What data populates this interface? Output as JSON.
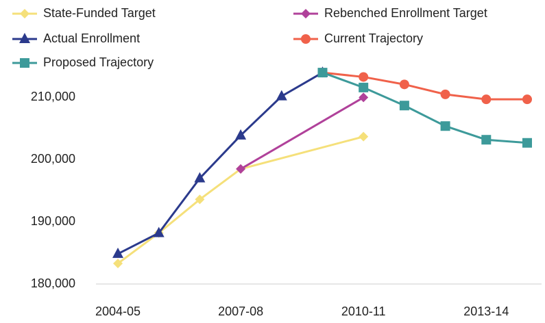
{
  "chart_data": {
    "type": "line",
    "categories": [
      "2004-05",
      null,
      null,
      "2007-08",
      null,
      null,
      "2010-11",
      null,
      null,
      "2013-14",
      null
    ],
    "ylim": [
      180000,
      215000
    ],
    "yticks": [
      {
        "value": 180000,
        "label": "180,000"
      },
      {
        "value": 190000,
        "label": "190,000"
      },
      {
        "value": 200000,
        "label": "200,000"
      },
      {
        "value": 210000,
        "label": "210,000"
      }
    ],
    "grid": false,
    "connect_gaps": true,
    "legend": "top",
    "series": [
      {
        "name": "State-Funded Target",
        "color": "#f5e07a",
        "marker": "diamond",
        "values": [
          183300,
          188200,
          193600,
          198500,
          null,
          null,
          203700,
          null,
          null,
          null,
          null
        ]
      },
      {
        "name": "Rebenched Enrollment Target",
        "color": "#b0419a",
        "marker": "diamond",
        "values": [
          null,
          null,
          null,
          198500,
          null,
          null,
          210000,
          null,
          null,
          null,
          null
        ]
      },
      {
        "name": "Actual Enrollment",
        "color": "#2b3a8c",
        "marker": "triangle",
        "values": [
          184850,
          188200,
          197000,
          203900,
          210200,
          214000,
          null,
          null,
          null,
          null,
          null
        ]
      },
      {
        "name": "Current Trajectory",
        "color": "#f0614a",
        "marker": "circle",
        "values": [
          null,
          null,
          null,
          null,
          null,
          214000,
          213300,
          212100,
          210500,
          209700,
          209700
        ]
      },
      {
        "name": "Proposed Trajectory",
        "color": "#3d9a9a",
        "marker": "square",
        "values": [
          null,
          null,
          null,
          null,
          null,
          214000,
          211600,
          208700,
          205400,
          203200,
          202700
        ]
      }
    ]
  }
}
